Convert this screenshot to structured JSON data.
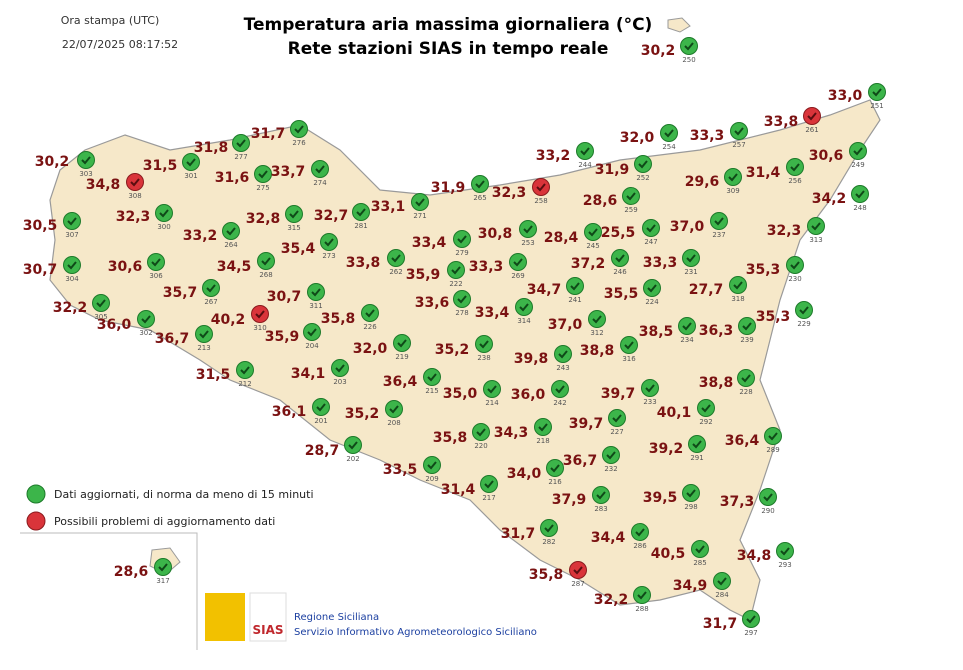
{
  "header": {
    "print_label": "Ora stampa (UTC)",
    "print_time": "22/07/2025 08:17:52",
    "title_line1": "Temperatura aria massima giornaliera (°C)",
    "title_line2": "Rete stazioni SIAS in tempo reale"
  },
  "legend": {
    "ok": "Dati aggiornati, di norma da meno di 15 minuti",
    "problem": "Possibili problemi di aggiornamento dati"
  },
  "footer": {
    "logo_text": "SIAS",
    "line1": "Regione Siciliana",
    "line2": "Servizio Informativo Agrometeorologico Siciliano"
  },
  "stations": [
    {
      "temp": "30,2",
      "id": "303",
      "status": "ok"
    },
    {
      "temp": "34,8",
      "id": "308",
      "status": "problem"
    },
    {
      "temp": "31,5",
      "id": "301",
      "status": "ok"
    },
    {
      "temp": "31,8",
      "id": "277",
      "status": "ok"
    },
    {
      "temp": "31,7",
      "id": "276",
      "status": "ok"
    },
    {
      "temp": "31,6",
      "id": "275",
      "status": "ok"
    },
    {
      "temp": "33,7",
      "id": "274",
      "status": "ok"
    },
    {
      "temp": "32,3",
      "id": "300",
      "status": "ok"
    },
    {
      "temp": "30,5",
      "id": "307",
      "status": "ok"
    },
    {
      "temp": "33,2",
      "id": "264",
      "status": "ok"
    },
    {
      "temp": "32,8",
      "id": "315",
      "status": "ok"
    },
    {
      "temp": "32,7",
      "id": "281",
      "status": "ok"
    },
    {
      "temp": "33,1",
      "id": "271",
      "status": "ok"
    },
    {
      "temp": "31,9",
      "id": "265",
      "status": "ok"
    },
    {
      "temp": "32,3",
      "id": "258",
      "status": "problem"
    },
    {
      "temp": "35,4",
      "id": "273",
      "status": "ok"
    },
    {
      "temp": "30,7",
      "id": "304",
      "status": "ok"
    },
    {
      "temp": "30,6",
      "id": "306",
      "status": "ok"
    },
    {
      "temp": "34,5",
      "id": "268",
      "status": "ok"
    },
    {
      "temp": "33,4",
      "id": "279",
      "status": "ok"
    },
    {
      "temp": "30,8",
      "id": "253",
      "status": "ok"
    },
    {
      "temp": "33,8",
      "id": "262",
      "status": "ok"
    },
    {
      "temp": "35,9",
      "id": "222",
      "status": "ok"
    },
    {
      "temp": "33,3",
      "id": "269",
      "status": "ok"
    },
    {
      "temp": "28,4",
      "id": "245",
      "status": "ok"
    },
    {
      "temp": "25,5",
      "id": "247",
      "status": "ok"
    },
    {
      "temp": "37,0",
      "id": "237",
      "status": "ok"
    },
    {
      "temp": "37,2",
      "id": "246",
      "status": "ok"
    },
    {
      "temp": "33,3",
      "id": "231",
      "status": "ok"
    },
    {
      "temp": "32,2",
      "id": "305",
      "status": "ok"
    },
    {
      "temp": "35,7",
      "id": "267",
      "status": "ok"
    },
    {
      "temp": "36,0",
      "id": "302",
      "status": "ok"
    },
    {
      "temp": "36,7",
      "id": "213",
      "status": "ok"
    },
    {
      "temp": "40,2",
      "id": "310",
      "status": "problem"
    },
    {
      "temp": "30,7",
      "id": "311",
      "status": "ok"
    },
    {
      "temp": "35,9",
      "id": "204",
      "status": "ok"
    },
    {
      "temp": "35,8",
      "id": "226",
      "status": "ok"
    },
    {
      "temp": "33,6",
      "id": "278",
      "status": "ok"
    },
    {
      "temp": "33,4",
      "id": "314",
      "status": "ok"
    },
    {
      "temp": "34,7",
      "id": "241",
      "status": "ok"
    },
    {
      "temp": "35,5",
      "id": "224",
      "status": "ok"
    },
    {
      "temp": "27,7",
      "id": "318",
      "status": "ok"
    },
    {
      "temp": "35,3",
      "id": "230",
      "status": "ok"
    },
    {
      "temp": "35,3",
      "id": "229",
      "status": "ok"
    },
    {
      "temp": "32,0",
      "id": "219",
      "status": "ok"
    },
    {
      "temp": "35,2",
      "id": "238",
      "status": "ok"
    },
    {
      "temp": "37,0",
      "id": "312",
      "status": "ok"
    },
    {
      "temp": "38,5",
      "id": "234",
      "status": "ok"
    },
    {
      "temp": "36,3",
      "id": "239",
      "status": "ok"
    },
    {
      "temp": "38,8",
      "id": "316",
      "status": "ok"
    },
    {
      "temp": "39,8",
      "id": "243",
      "status": "ok"
    },
    {
      "temp": "31,5",
      "id": "212",
      "status": "ok"
    },
    {
      "temp": "34,1",
      "id": "203",
      "status": "ok"
    },
    {
      "temp": "36,4",
      "id": "215",
      "status": "ok"
    },
    {
      "temp": "35,0",
      "id": "214",
      "status": "ok"
    },
    {
      "temp": "36,0",
      "id": "242",
      "status": "ok"
    },
    {
      "temp": "39,7",
      "id": "233",
      "status": "ok"
    },
    {
      "temp": "38,8",
      "id": "228",
      "status": "ok"
    },
    {
      "temp": "36,1",
      "id": "201",
      "status": "ok"
    },
    {
      "temp": "35,2",
      "id": "208",
      "status": "ok"
    },
    {
      "temp": "40,1",
      "id": "292",
      "status": "ok"
    },
    {
      "temp": "39,7",
      "id": "227",
      "status": "ok"
    },
    {
      "temp": "35,8",
      "id": "220",
      "status": "ok"
    },
    {
      "temp": "34,3",
      "id": "218",
      "status": "ok"
    },
    {
      "temp": "39,2",
      "id": "291",
      "status": "ok"
    },
    {
      "temp": "36,4",
      "id": "289",
      "status": "ok"
    },
    {
      "temp": "28,7",
      "id": "202",
      "status": "ok"
    },
    {
      "temp": "36,7",
      "id": "232",
      "status": "ok"
    },
    {
      "temp": "34,0",
      "id": "216",
      "status": "ok"
    },
    {
      "temp": "33,5",
      "id": "209",
      "status": "ok"
    },
    {
      "temp": "31,4",
      "id": "217",
      "status": "ok"
    },
    {
      "temp": "37,9",
      "id": "283",
      "status": "ok"
    },
    {
      "temp": "39,5",
      "id": "298",
      "status": "ok"
    },
    {
      "temp": "37,3",
      "id": "290",
      "status": "ok"
    },
    {
      "temp": "31,7",
      "id": "282",
      "status": "ok"
    },
    {
      "temp": "34,4",
      "id": "286",
      "status": "ok"
    },
    {
      "temp": "40,5",
      "id": "285",
      "status": "ok"
    },
    {
      "temp": "34,8",
      "id": "293",
      "status": "ok"
    },
    {
      "temp": "35,8",
      "id": "287",
      "status": "problem"
    },
    {
      "temp": "34,9",
      "id": "284",
      "status": "ok"
    },
    {
      "temp": "32,2",
      "id": "288",
      "status": "ok"
    },
    {
      "temp": "31,7",
      "id": "297",
      "status": "ok"
    },
    {
      "temp": "28,6",
      "id": "317",
      "status": "ok"
    },
    {
      "temp": "33,2",
      "id": "244",
      "status": "ok"
    },
    {
      "temp": "32,0",
      "id": "254",
      "status": "ok"
    },
    {
      "temp": "33,3",
      "id": "257",
      "status": "ok"
    },
    {
      "temp": "33,8",
      "id": "261",
      "status": "problem"
    },
    {
      "temp": "33,0",
      "id": "251",
      "status": "ok"
    },
    {
      "temp": "31,9",
      "id": "252",
      "status": "ok"
    },
    {
      "temp": "28,6",
      "id": "259",
      "status": "ok"
    },
    {
      "temp": "29,6",
      "id": "309",
      "status": "ok"
    },
    {
      "temp": "31,4",
      "id": "256",
      "status": "ok"
    },
    {
      "temp": "30,6",
      "id": "249",
      "status": "ok"
    },
    {
      "temp": "34,2",
      "id": "248",
      "status": "ok"
    },
    {
      "temp": "32,3",
      "id": "313",
      "status": "ok"
    },
    {
      "temp": "30,2",
      "id": "250",
      "status": "ok"
    }
  ]
}
